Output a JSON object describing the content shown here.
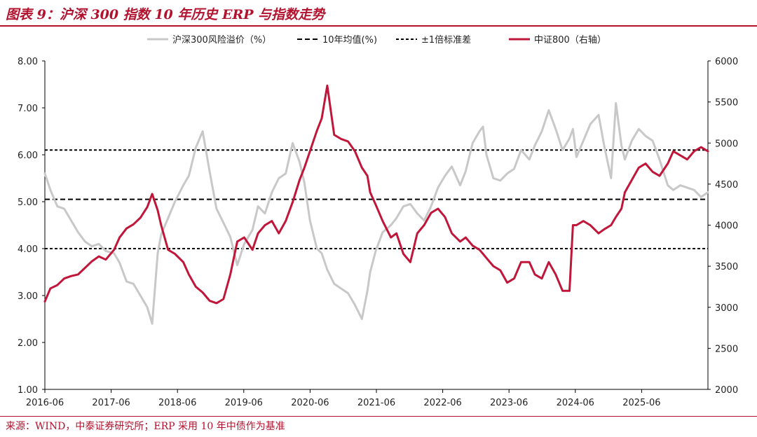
{
  "header": {
    "title": "图表 9：沪深 300 指数 10 年历史 ERP 与指数走势"
  },
  "footer": {
    "source": "来源：WIND，中泰证券研究所；ERP 采用 10 年中债作为基准"
  },
  "colors": {
    "brand": "#b3122e",
    "erp_line": "#c8c8c8",
    "csi800_line": "#c0163a",
    "ref_line": "#000000"
  },
  "chart_data": {
    "type": "line",
    "title": "",
    "xlabel": "",
    "ylabel": "",
    "y2label": "",
    "legend_position": "top",
    "grid": false,
    "x_ticks": [
      "2016-06",
      "2017-06",
      "2018-06",
      "2019-06",
      "2020-06",
      "2021-06",
      "2022-06",
      "2023-06",
      "2024-06",
      "2025-06"
    ],
    "x_range": [
      2016.42,
      2026.0
    ],
    "ylim": [
      1,
      8
    ],
    "y_ticks": [
      "1.00",
      "2.00",
      "3.00",
      "4.00",
      "5.00",
      "6.00",
      "7.00",
      "8.00"
    ],
    "y2lim": [
      2000,
      6000
    ],
    "y2_ticks": [
      "2000",
      "2500",
      "3000",
      "3500",
      "4000",
      "4500",
      "5000",
      "5500",
      "6000"
    ],
    "legend": [
      "沪深300风险溢价（%）",
      "10年均值(%)",
      "±1倍标准差",
      "中证800（右轴）"
    ],
    "series": [
      {
        "name": "沪深300风险溢价（%）",
        "axis": "left",
        "x": [
          2016.42,
          2016.5,
          2016.6,
          2016.7,
          2016.8,
          2016.9,
          2017.0,
          2017.1,
          2017.2,
          2017.3,
          2017.42,
          2017.5,
          2017.6,
          2017.7,
          2017.8,
          2017.9,
          2017.97,
          2018.05,
          2018.1,
          2018.2,
          2018.3,
          2018.42,
          2018.5,
          2018.6,
          2018.7,
          2018.8,
          2018.9,
          2019.0,
          2019.1,
          2019.2,
          2019.3,
          2019.42,
          2019.5,
          2019.6,
          2019.7,
          2019.8,
          2019.9,
          2020.0,
          2020.1,
          2020.17,
          2020.25,
          2020.35,
          2020.42,
          2020.5,
          2020.6,
          2020.7,
          2020.8,
          2020.9,
          2021.0,
          2021.08,
          2021.12,
          2021.2,
          2021.3,
          2021.42,
          2021.5,
          2021.6,
          2021.7,
          2021.8,
          2021.9,
          2022.0,
          2022.1,
          2022.2,
          2022.3,
          2022.42,
          2022.5,
          2022.6,
          2022.7,
          2022.75,
          2022.8,
          2022.9,
          2023.0,
          2023.1,
          2023.2,
          2023.3,
          2023.42,
          2023.5,
          2023.6,
          2023.7,
          2023.8,
          2023.9,
          2024.0,
          2024.05,
          2024.1,
          2024.2,
          2024.3,
          2024.42,
          2024.5,
          2024.6,
          2024.67,
          2024.75,
          2024.8,
          2024.9,
          2025.0,
          2025.1,
          2025.2,
          2025.3,
          2025.42,
          2025.5,
          2025.6,
          2025.7,
          2025.8,
          2025.9,
          2026.0
        ],
        "values": [
          5.6,
          5.25,
          4.9,
          4.85,
          4.6,
          4.35,
          4.15,
          4.05,
          4.1,
          3.95,
          3.9,
          3.7,
          3.3,
          3.25,
          3.0,
          2.75,
          2.4,
          3.9,
          4.3,
          4.65,
          5.0,
          5.35,
          5.55,
          6.15,
          6.5,
          5.65,
          4.85,
          4.55,
          4.25,
          3.65,
          4.1,
          4.4,
          4.9,
          4.75,
          5.2,
          5.5,
          5.6,
          6.25,
          5.85,
          5.4,
          4.6,
          4.0,
          3.9,
          3.55,
          3.25,
          3.15,
          3.05,
          2.8,
          2.5,
          3.1,
          3.5,
          3.95,
          4.35,
          4.5,
          4.65,
          4.9,
          4.95,
          4.75,
          4.6,
          4.9,
          5.3,
          5.55,
          5.75,
          5.35,
          5.65,
          6.25,
          6.5,
          6.6,
          6.0,
          5.5,
          5.45,
          5.6,
          5.7,
          6.1,
          5.9,
          6.2,
          6.5,
          6.95,
          6.55,
          6.1,
          6.35,
          6.55,
          5.95,
          6.3,
          6.65,
          6.85,
          6.2,
          5.5,
          7.1,
          6.2,
          5.9,
          6.3,
          6.55,
          6.4,
          6.3,
          5.9,
          5.35,
          5.25,
          5.35,
          5.3,
          5.25,
          5.1,
          5.2
        ]
      },
      {
        "name": "中证800（右轴）",
        "axis": "right",
        "x": [
          2016.42,
          2016.5,
          2016.6,
          2016.7,
          2016.8,
          2016.9,
          2017.0,
          2017.1,
          2017.2,
          2017.3,
          2017.42,
          2017.5,
          2017.6,
          2017.7,
          2017.8,
          2017.9,
          2017.97,
          2018.05,
          2018.1,
          2018.2,
          2018.3,
          2018.42,
          2018.5,
          2018.6,
          2018.7,
          2018.8,
          2018.9,
          2019.0,
          2019.1,
          2019.2,
          2019.3,
          2019.42,
          2019.5,
          2019.6,
          2019.7,
          2019.8,
          2019.9,
          2020.0,
          2020.1,
          2020.17,
          2020.25,
          2020.35,
          2020.42,
          2020.5,
          2020.6,
          2020.7,
          2020.8,
          2020.9,
          2021.0,
          2021.08,
          2021.12,
          2021.2,
          2021.3,
          2021.42,
          2021.5,
          2021.6,
          2021.7,
          2021.8,
          2021.9,
          2022.0,
          2022.1,
          2022.2,
          2022.3,
          2022.42,
          2022.5,
          2022.6,
          2022.7,
          2022.75,
          2022.8,
          2022.9,
          2023.0,
          2023.1,
          2023.2,
          2023.3,
          2023.42,
          2023.5,
          2023.6,
          2023.7,
          2023.8,
          2023.9,
          2024.0,
          2024.05,
          2024.1,
          2024.2,
          2024.3,
          2024.42,
          2024.5,
          2024.6,
          2024.67,
          2024.75,
          2024.8,
          2024.9,
          2025.0,
          2025.1,
          2025.2,
          2025.3,
          2025.42,
          2025.5,
          2025.6,
          2025.7,
          2025.8,
          2025.9,
          2026.0
        ],
        "values": [
          3070,
          3230,
          3270,
          3350,
          3380,
          3400,
          3480,
          3560,
          3620,
          3580,
          3700,
          3850,
          3960,
          4010,
          4090,
          4220,
          4380,
          4180,
          4000,
          3700,
          3650,
          3550,
          3400,
          3250,
          3180,
          3080,
          3050,
          3100,
          3400,
          3800,
          3850,
          3700,
          3900,
          4000,
          4050,
          3900,
          4050,
          4280,
          4550,
          4700,
          4900,
          5150,
          5300,
          5700,
          5100,
          5050,
          5020,
          4900,
          4700,
          4600,
          4400,
          4250,
          4050,
          3850,
          3900,
          3650,
          3550,
          3900,
          4000,
          4150,
          4200,
          4100,
          3900,
          3800,
          3850,
          3750,
          3700,
          3650,
          3600,
          3500,
          3450,
          3300,
          3350,
          3550,
          3550,
          3400,
          3350,
          3550,
          3400,
          3200,
          3200,
          4000,
          4000,
          4050,
          4000,
          3900,
          3950,
          4000,
          4100,
          4200,
          4400,
          4550,
          4700,
          4750,
          4650,
          4600,
          4750,
          4900,
          4850,
          4800,
          4900,
          4950,
          4900
        ]
      }
    ],
    "reference_lines": [
      {
        "name": "10年均值(%)",
        "value": 5.05,
        "style": "dashed"
      },
      {
        "name": "±1倍标准差",
        "value": 6.1,
        "style": "dotted"
      },
      {
        "name": "±1倍标准差",
        "value": 4.0,
        "style": "dotted"
      }
    ]
  }
}
